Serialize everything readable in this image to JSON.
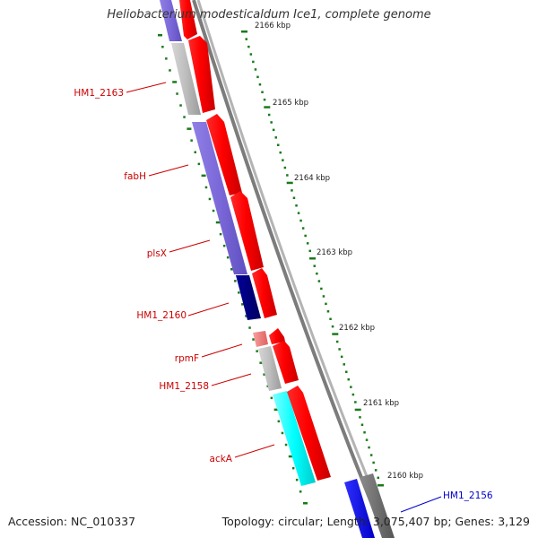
{
  "title": "Heliobacterium modesticaldum Ice1, complete genome",
  "footer": {
    "accession": "Accession: NC_010337",
    "summary": "Topology: circular; Length: 3,075,407 bp; Genes: 3,129"
  },
  "ruler": {
    "unit": "kbp",
    "labels": [
      "2166 kbp",
      "2165 kbp",
      "2164 kbp",
      "2163 kbp",
      "2162 kbp",
      "2161 kbp",
      "2160 kbp"
    ]
  },
  "genes": {
    "left": [
      "HM1_2163",
      "fabH",
      "plsX",
      "HM1_2160",
      "rpmF",
      "HM1_2158",
      "ackA"
    ],
    "right": [
      "HM1_2156"
    ]
  },
  "colors": {
    "cds": "#ff0000",
    "backbone": "#909090",
    "ticks": "#1a7a1a",
    "label_red": "#cc0000",
    "label_blue": "#0000cc",
    "purple": "#7b68d8",
    "navy": "#000080",
    "cyan": "#00ffff",
    "blue": "#0000ff",
    "gray": "#bdbdbd",
    "pink": "#f08080"
  }
}
